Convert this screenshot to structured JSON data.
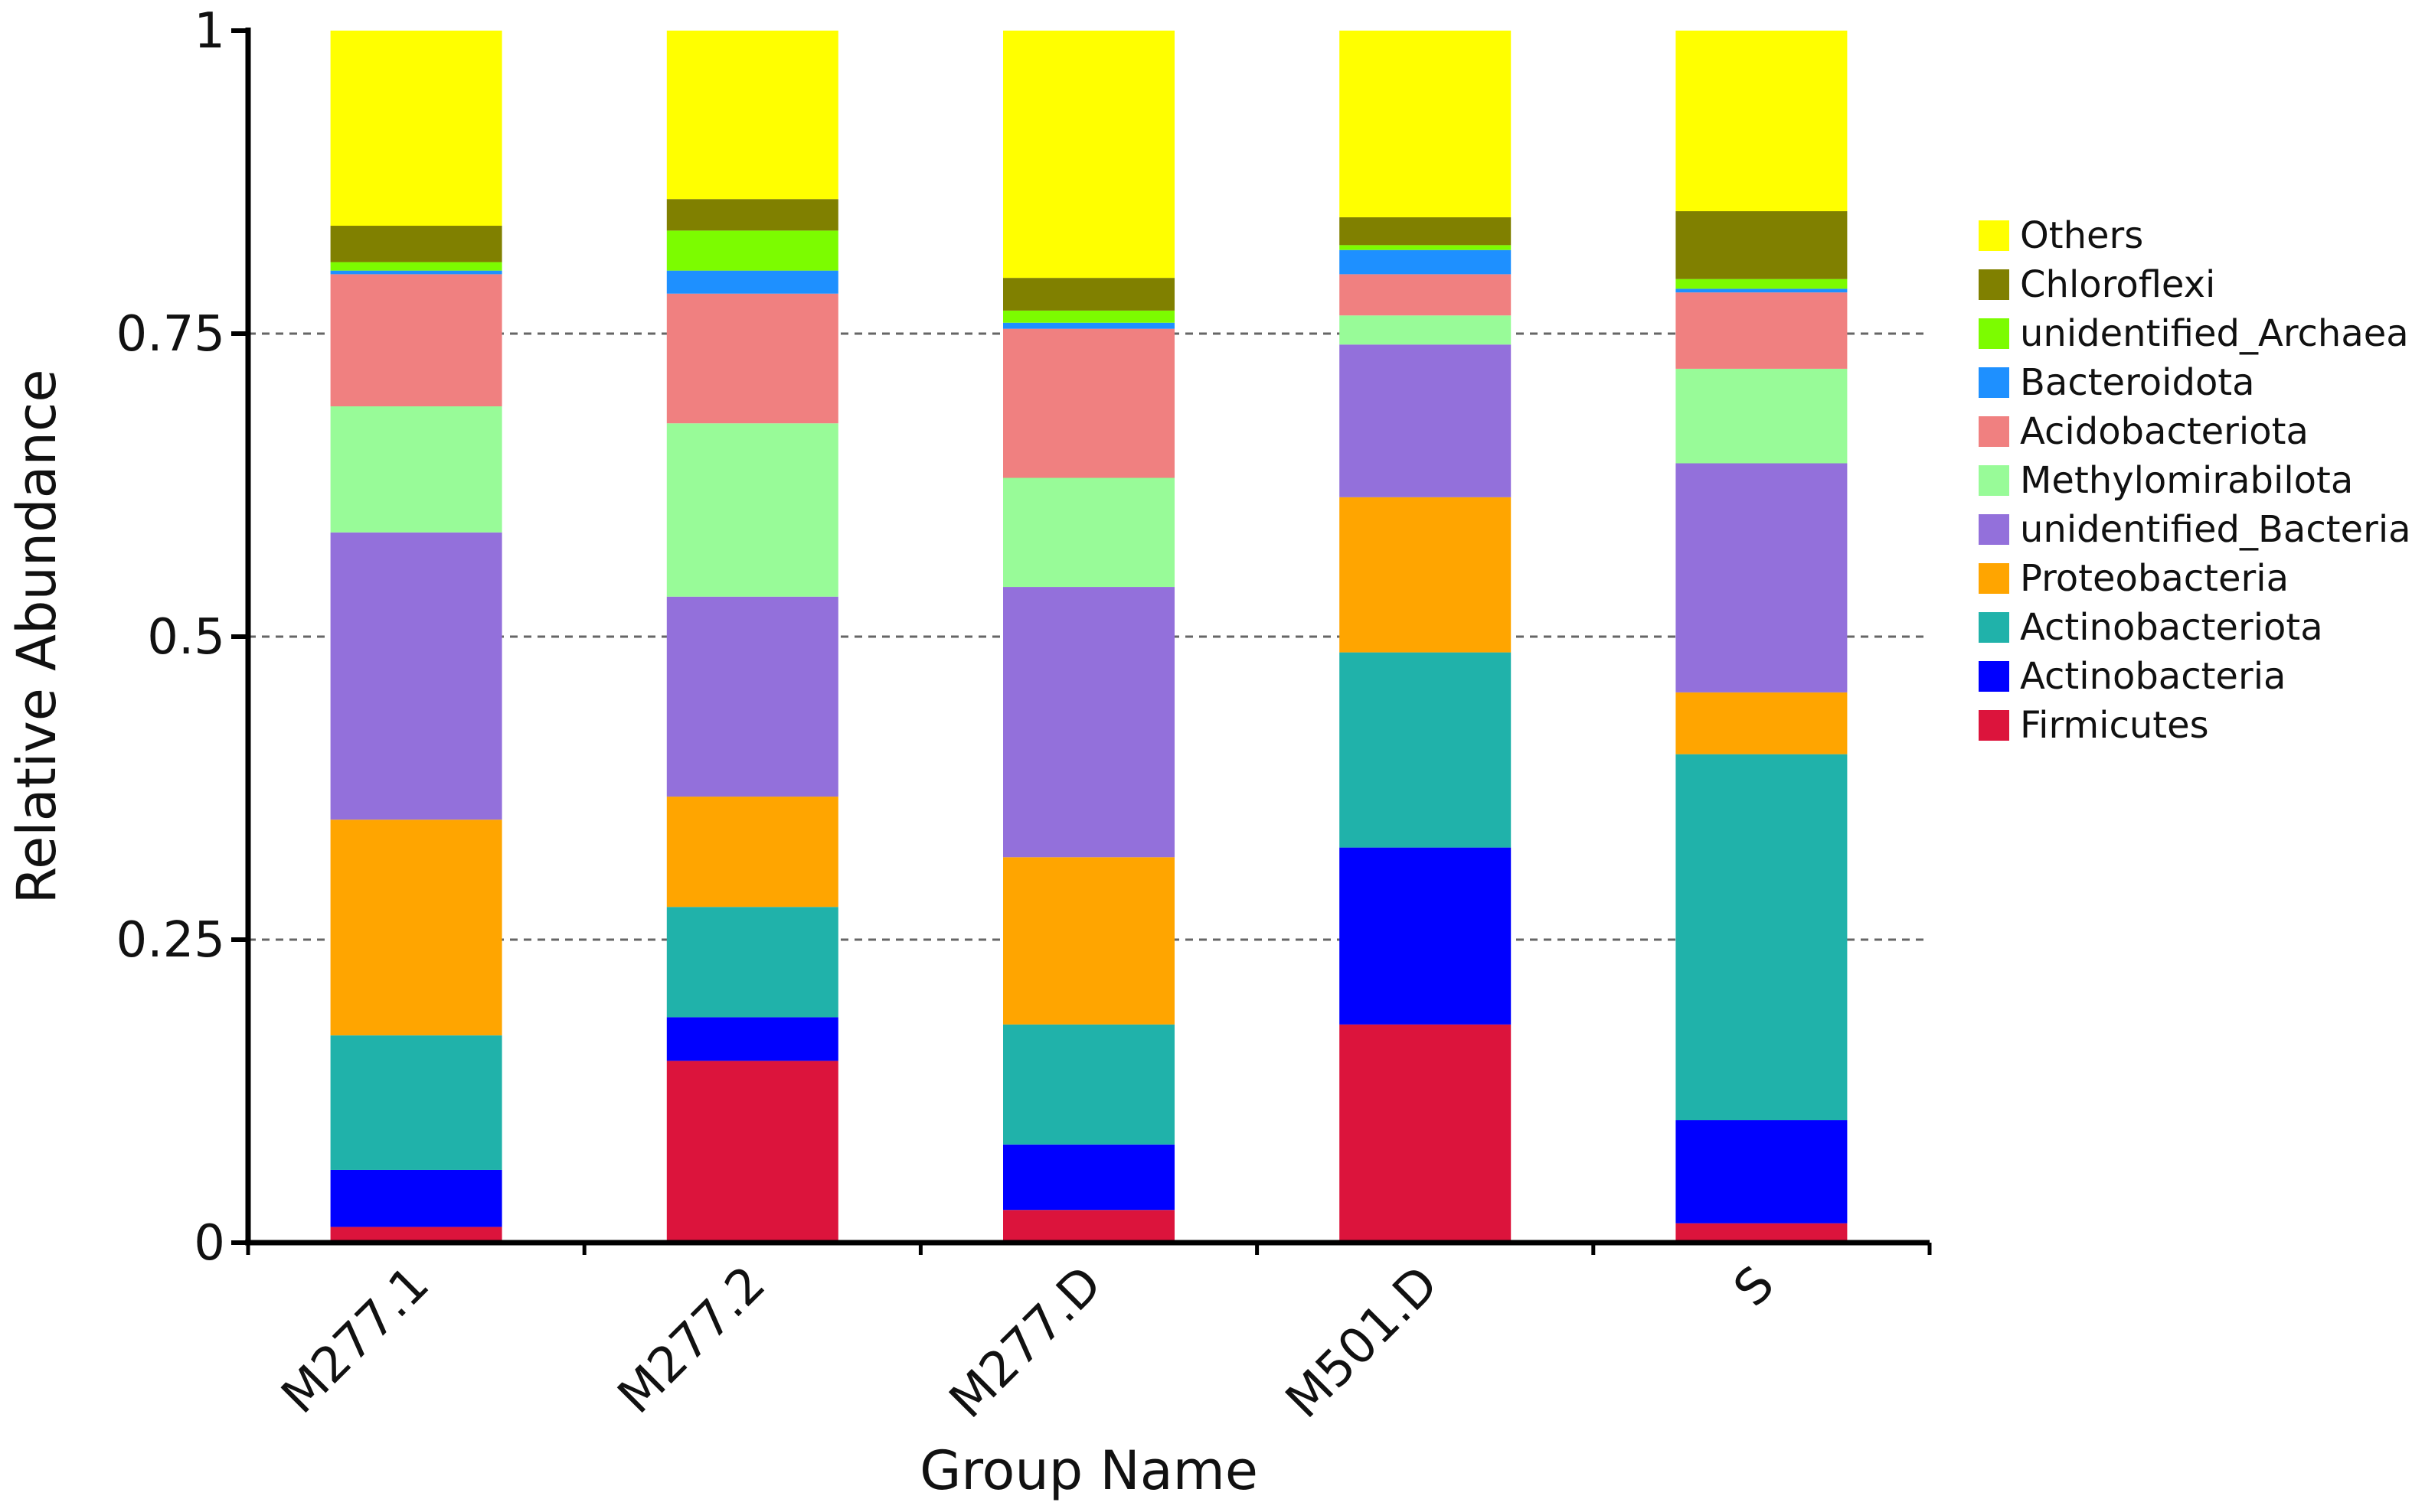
{
  "chart_data": {
    "type": "bar",
    "stacked": true,
    "xlabel": "Group Name",
    "ylabel": "Relative Abundance",
    "ylim": [
      0,
      1
    ],
    "yticks": [
      "0",
      "0.25",
      "0.5",
      "0.75",
      "1"
    ],
    "grid": "dashed horizontal at 0.25, 0.5, 0.75",
    "legend_position": "right",
    "categories": [
      "M277.1",
      "M277.2",
      "M277.D",
      "M501.D",
      "S"
    ],
    "series": [
      {
        "name": "Firmicutes",
        "color": "#DC143C",
        "values": [
          0.013,
          0.15,
          0.027,
          0.18,
          0.016
        ]
      },
      {
        "name": "Actinobacteria",
        "color": "#0000FF",
        "values": [
          0.047,
          0.036,
          0.054,
          0.146,
          0.085
        ]
      },
      {
        "name": "Actinobacteriota",
        "color": "#20B2AA",
        "values": [
          0.111,
          0.091,
          0.099,
          0.161,
          0.302
        ]
      },
      {
        "name": "Proteobacteria",
        "color": "#FFA500",
        "values": [
          0.178,
          0.091,
          0.138,
          0.128,
          0.051
        ]
      },
      {
        "name": "unidentified_Bacteria",
        "color": "#9370DB",
        "values": [
          0.237,
          0.165,
          0.223,
          0.126,
          0.189
        ]
      },
      {
        "name": "Methylomirabilota",
        "color": "#98FB98",
        "values": [
          0.104,
          0.143,
          0.09,
          0.024,
          0.078
        ]
      },
      {
        "name": "Acidobacteriota",
        "color": "#F08080",
        "values": [
          0.109,
          0.107,
          0.123,
          0.034,
          0.063
        ]
      },
      {
        "name": "Bacteroidota",
        "color": "#1E90FF",
        "values": [
          0.003,
          0.019,
          0.005,
          0.02,
          0.003
        ]
      },
      {
        "name": "unidentified_Archaea",
        "color": "#7CFC00",
        "values": [
          0.007,
          0.033,
          0.01,
          0.004,
          0.008
        ]
      },
      {
        "name": "Chloroflexi",
        "color": "#808000",
        "values": [
          0.03,
          0.026,
          0.027,
          0.023,
          0.056
        ]
      },
      {
        "name": "Others",
        "color": "#FFFF00",
        "values": [
          0.161,
          0.139,
          0.204,
          0.154,
          0.149
        ]
      }
    ]
  }
}
